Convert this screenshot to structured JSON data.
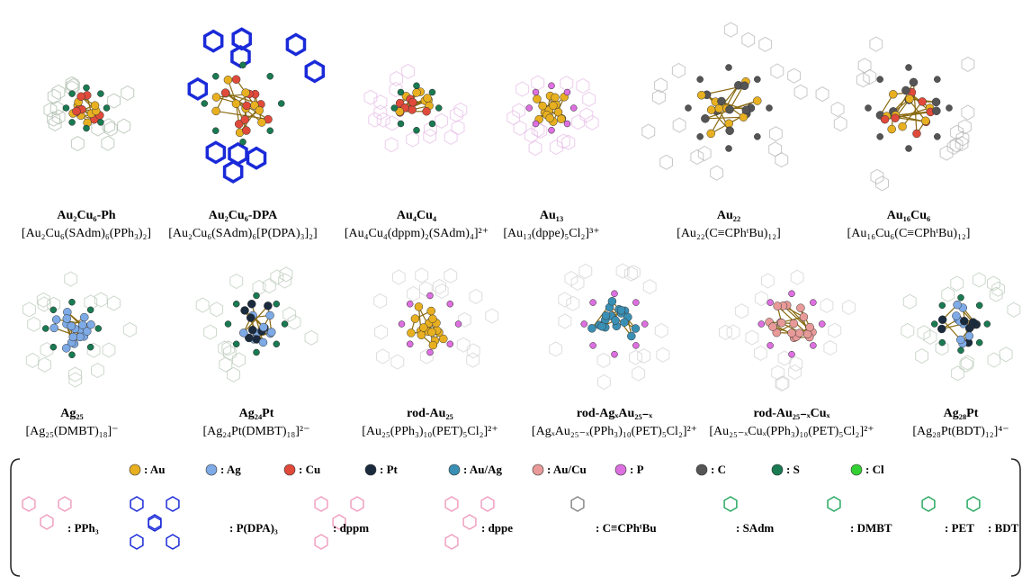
{
  "clusters": [
    {
      "name": "Au₂Cu₆-Ph",
      "formula": "[Au₂Cu₆(SAdm)₆(PPh₃)₂]"
    },
    {
      "name": "Au₂Cu₆-DPA",
      "formula": "[Au₂Cu₆(SAdm)₆[P(DPA)₃]₂]"
    },
    {
      "name": "Au₄Cu₄",
      "formula": "[Au₄Cu₄(dppm)₂(SAdm)₄]²⁺"
    },
    {
      "name": "Au₁₃",
      "formula": "[Au₁₃(dppe)₅Cl₂]³⁺"
    },
    {
      "name": "Au₂₂",
      "formula": "[Au₂₂(C≡CPhᵗBu)₁₂]"
    },
    {
      "name": "Au₁₆Cu₆",
      "formula": "[Au₁₆Cu₆(C≡CPhᵗBu)₁₂]"
    },
    {
      "name": "Ag₂₅",
      "formula": "[Ag₂₅(DMBT)₁₈]⁻"
    },
    {
      "name": "Ag₂₄Pt",
      "formula": "[Ag₂₄Pt(DMBT)₁₈]²⁻"
    },
    {
      "name": "rod-Au₂₅",
      "formula": "[Au₂₅(PPh₃)₁₀(PET)₅Cl₂]²⁺"
    },
    {
      "name": "rod-AgₓAu₂₅₋ₓ",
      "formula": "[AgₓAu₂₅₋ₓ(PPh₃)₁₀(PET)₅Cl₂]²⁺"
    },
    {
      "name": "rod-Au₂₅₋ₓCuₓ",
      "formula": "[Au₂₅₋ₓCuₓ(PPh₃)₁₀(PET)₅Cl₂]²⁺"
    },
    {
      "name": "Ag₂₈Pt",
      "formula": "[Ag₂₈Pt(BDT)₁₂]⁴⁻"
    }
  ],
  "legend": {
    "atoms": [
      {
        "label": ": Au",
        "color": "#e8b020"
      },
      {
        "label": ": Ag",
        "color": "#7eaae6"
      },
      {
        "label": ": Cu",
        "color": "#e04a3a"
      },
      {
        "label": ": Pt",
        "color": "#1b2b3e"
      },
      {
        "label": ": Au/Ag",
        "color": "#3a90b4"
      },
      {
        "label": ": Au/Cu",
        "color": "#e89a98"
      },
      {
        "label": ": P",
        "color": "#dd70e0"
      },
      {
        "label": ": C",
        "color": "#555555"
      },
      {
        "label": ": S",
        "color": "#1a7a52"
      },
      {
        "label": ": Cl",
        "color": "#33d033"
      }
    ],
    "ligands": [
      {
        "label": ": PPh₃",
        "color": "#f0a0c0"
      },
      {
        "label": ": P(DPA)₃",
        "color": "#1a2ad8"
      },
      {
        "label": ": dppm",
        "color": "#f0a0c0"
      },
      {
        "label": ": dppe",
        "color": "#f0a0c0"
      },
      {
        "label": ": C≡CPhᵗBu",
        "color": "#888888"
      },
      {
        "label": ": SAdm",
        "color": "#2aa860"
      },
      {
        "label": ": DMBT",
        "color": "#2aa860"
      },
      {
        "label": ": PET",
        "color": "#2aa860"
      },
      {
        "label": ": BDT",
        "color": "#2aa860"
      }
    ]
  }
}
